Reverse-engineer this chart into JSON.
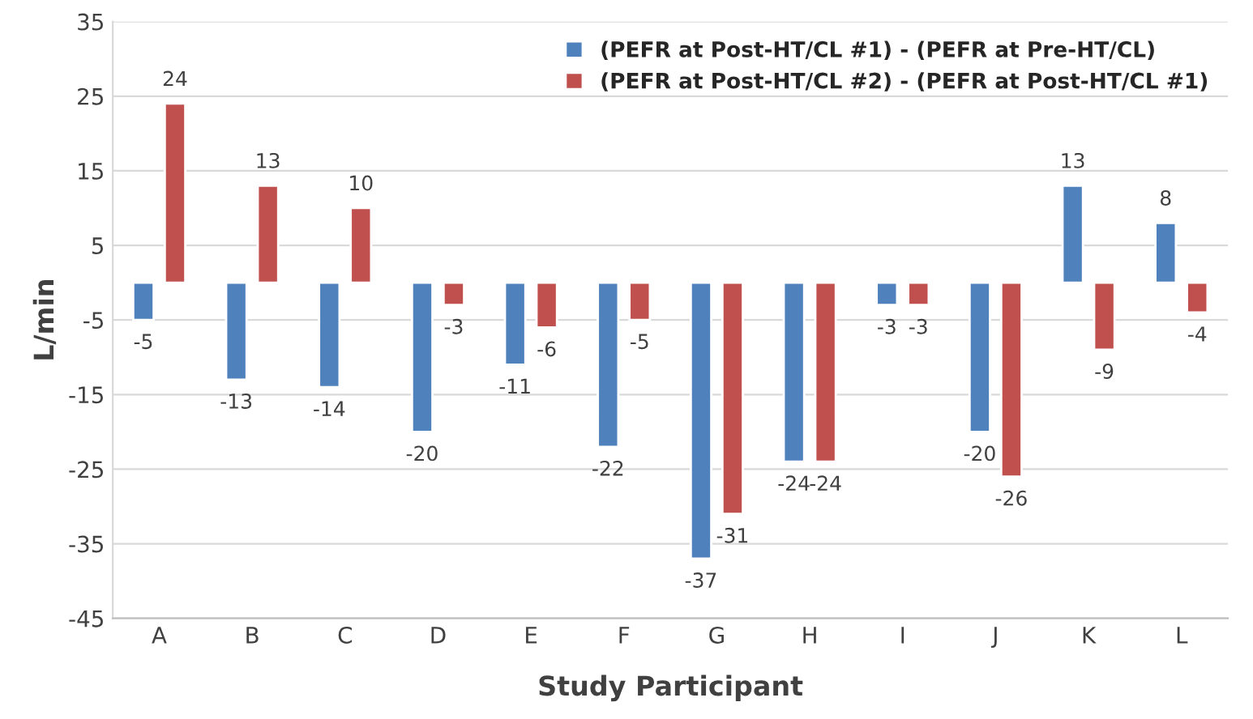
{
  "chart_data": {
    "type": "bar",
    "categories": [
      "A",
      "B",
      "C",
      "D",
      "E",
      "F",
      "G",
      "H",
      "I",
      "J",
      "K",
      "L"
    ],
    "series": [
      {
        "name": "(PEFR at Post-HT/CL #1) - (PEFR at Pre-HT/CL)",
        "color": "#4f81bd",
        "values": [
          -5,
          -13,
          -14,
          -20,
          -11,
          -22,
          -37,
          -24,
          -3,
          -20,
          13,
          8
        ]
      },
      {
        "name": "(PEFR at Post-HT/CL #2) - (PEFR at Post-HT/CL #1)",
        "color": "#c0504d",
        "values": [
          24,
          13,
          10,
          -3,
          -6,
          -5,
          -31,
          -24,
          -3,
          -26,
          -9,
          -4
        ]
      }
    ],
    "xlabel": "Study Participant",
    "ylabel": "L/min",
    "ylim": [
      -45,
      35
    ],
    "yticks": [
      -45,
      -35,
      -25,
      -15,
      -5,
      5,
      15,
      25,
      35
    ],
    "grid": "y",
    "legend": "top right",
    "data_labels": true
  }
}
